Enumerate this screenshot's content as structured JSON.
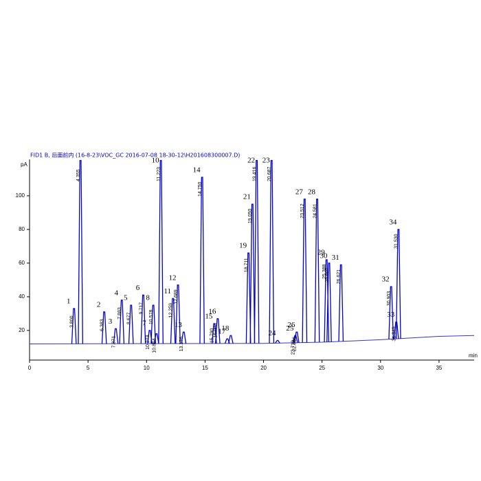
{
  "chart_data": {
    "type": "chromatogram",
    "title": "FID1 B, 后面前内 (16-8-23\\VOC_GC 2016-07-08 18-30-12\\H201608300007.D)",
    "y_label": "pA",
    "x_label": "min",
    "xlim": [
      0,
      38
    ],
    "xticks": [
      0,
      5,
      10,
      15,
      20,
      25,
      30,
      35
    ],
    "ylim": [
      2.4,
      121.6
    ],
    "yticks": [
      20,
      40,
      60,
      80,
      100
    ],
    "color": "#0000cc",
    "baseline_color": "#3333cc",
    "baseline": {
      "x": [
        0,
        20,
        25,
        30,
        35,
        38
      ],
      "values": [
        12,
        12.3,
        13,
        14.5,
        16.5,
        17
      ]
    },
    "peaks": {
      "x": [
        3.8,
        4.355,
        6.383,
        7.371,
        7.883,
        8.677,
        9.717,
        10.273,
        10.578,
        10.854,
        11.223,
        12.259,
        12.689,
        13.176,
        14.75,
        15.79,
        16.083,
        16.9,
        17.2,
        18.711,
        19.05,
        19.416,
        20.687,
        21.2,
        22.719,
        22.836,
        23.512,
        24.581,
        25.388,
        25.607,
        26.621,
        30.903,
        31.349,
        31.53
      ],
      "values": [
        33,
        121,
        31,
        21,
        38,
        35,
        41,
        20,
        35,
        18,
        121,
        39,
        47,
        19,
        111,
        24,
        27,
        15,
        17,
        66,
        95,
        121,
        121,
        14,
        17,
        19,
        98,
        98,
        62,
        60,
        59,
        46,
        25,
        80
      ],
      "x_labels": [
        "3.800",
        "4.355",
        "6.383",
        "7.371",
        "7.883",
        "8.677",
        "9.717",
        "10.273",
        "10.578",
        "10.854",
        "11.223",
        "12.259",
        "12.689",
        "13.176",
        "14.750",
        "15.790",
        "16.083",
        null,
        null,
        "18.711",
        "19.050",
        "19.416",
        "20.687",
        null,
        "22.719",
        "22.836",
        "23.512",
        "24.581",
        "25.388",
        "25.607",
        "26.621",
        "30.903",
        "31.349",
        "31.530"
      ],
      "labels": [
        "1",
        null,
        "2",
        "3",
        "4",
        "5",
        "6",
        "7",
        "8",
        null,
        "10",
        "11",
        "12",
        "13",
        "14",
        "15",
        "16",
        "17",
        "18",
        "19",
        "21",
        "22",
        "23",
        "24",
        "25",
        "26",
        "27",
        "28",
        "29",
        "30",
        "31",
        "32",
        "33",
        "34"
      ]
    }
  }
}
